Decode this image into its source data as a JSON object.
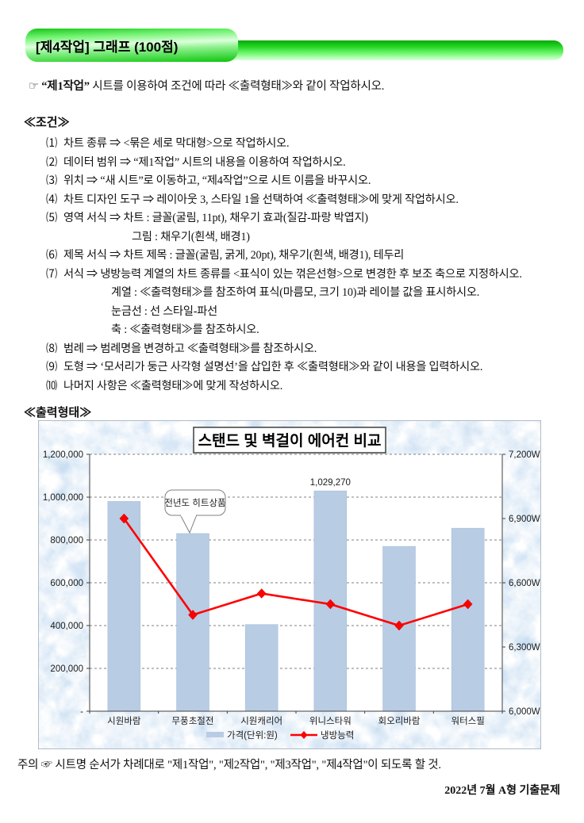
{
  "header": {
    "title": "[제4작업] 그래프  (100점)"
  },
  "instruction": {
    "pointer": "☞",
    "sheet": "“제1작업”",
    "rest": " 시트를 이용하여 조건에 따라 ≪출력형태≫와 같이 작업하시오."
  },
  "conditions": {
    "heading": "≪조건≫",
    "items": [
      {
        "num": "⑴",
        "indent": 0,
        "text": "차트 종류 ⇒ <묶은 세로 막대형>으로 작업하시오."
      },
      {
        "num": "⑵",
        "indent": 0,
        "text": "데이터 범위 ⇒ “제1작업” 시트의 내용을 이용하여 작업하시오."
      },
      {
        "num": "⑶",
        "indent": 0,
        "text": "위치 ⇒ “새 시트”로 이동하고, “제4작업”으로 시트 이름을 바꾸시오."
      },
      {
        "num": "⑷",
        "indent": 0,
        "text": "차트 디자인 도구 ⇒ 레이아웃 3, 스타일 1을 선택하여 ≪출력형태≫에 맞게 작업하시오."
      },
      {
        "num": "⑸",
        "indent": 0,
        "text": "영역 서식 ⇒ 차트 : 글꼴(굴림, 11pt), 채우기 효과(질감-파랑 박엽지)"
      },
      {
        "num": "",
        "indent": 2,
        "text": "그림 : 채우기(흰색, 배경1)"
      },
      {
        "num": "⑹",
        "indent": 0,
        "text": "제목 서식 ⇒ 차트 제목 : 글꼴(굴림, 굵게, 20pt), 채우기(흰색, 배경1), 테두리"
      },
      {
        "num": "⑺",
        "indent": 0,
        "text": "서식 ⇒ 냉방능력 계열의 차트 종류를 <표식이 있는 꺾은선형>으로 변경한 후 보조 축으로 지정하시오."
      },
      {
        "num": "",
        "indent": 1,
        "text": "계열 : ≪출력형태≫를 참조하여 표식(마름모, 크기 10)과 레이블 값을 표시하시오."
      },
      {
        "num": "",
        "indent": 1,
        "text": "눈금선 : 선 스타일-파선"
      },
      {
        "num": "",
        "indent": 1,
        "text": "축 : ≪출력형태≫를 참조하시오."
      },
      {
        "num": "⑻",
        "indent": 0,
        "text": "범례 ⇒ 범례명을 변경하고 ≪출력형태≫를 참조하시오."
      },
      {
        "num": "⑼",
        "indent": 0,
        "text": "도형 ⇒ ‘모서리가 둥근 사각형 설명선’을 삽입한 후 ≪출력형태≫와 같이 내용을 입력하시오."
      },
      {
        "num": "⑽",
        "indent": 0,
        "text": "나머지 사항은 ≪출력형태≫에 맞게 작성하시오."
      }
    ]
  },
  "output_form": {
    "heading": "≪출력형태≫"
  },
  "chart_data": {
    "type": "bar",
    "title": "스탠드 및 벽걸이 에어컨 비교",
    "categories": [
      "시원바람",
      "무풍초절전",
      "시원캐리어",
      "위니스타워",
      "회오리바람",
      "워터스필"
    ],
    "series": [
      {
        "name": "가격(단위:원)",
        "type": "bar",
        "axis": "primary",
        "color": "#b8cce4",
        "values": [
          980000,
          830000,
          405000,
          1029270,
          770000,
          855000
        ]
      },
      {
        "name": "냉방능력",
        "type": "line",
        "axis": "secondary",
        "color": "#ff0000",
        "marker": "diamond",
        "values": [
          6900,
          6450,
          6550,
          6500,
          6400,
          6500
        ]
      }
    ],
    "primary_axis": {
      "min": 0,
      "max": 1200000,
      "step": 200000,
      "tick_labels": [
        "-",
        "200,000",
        "400,000",
        "600,000",
        "800,000",
        "1,000,000",
        "1,200,000"
      ]
    },
    "secondary_axis": {
      "min": 6000,
      "max": 7200,
      "step": 300,
      "tick_labels": [
        "6,000W",
        "6,300W",
        "6,600W",
        "6,900W",
        "7,200W"
      ]
    },
    "data_label": {
      "category_index": 3,
      "text": "1,029,270"
    },
    "callout": {
      "text": "전년도 히트상품",
      "target_category_index": 1
    },
    "gridlines": "dashed",
    "legend_position": "bottom",
    "colors": {
      "chart_bg_texture": "#cbdff2",
      "plot_bg": "#ffffff",
      "grid": "#808080",
      "axis": "#404040",
      "text": "#1a1a1a"
    }
  },
  "notice": {
    "text": "주의 ☞ 시트명 순서가 차례대로 \"제1작업\", \"제2작업\", \"제3작업\", \"제4작업\"이 되도록 할 것."
  },
  "footer": {
    "text": "2022년 7월 A형 기출문제"
  }
}
